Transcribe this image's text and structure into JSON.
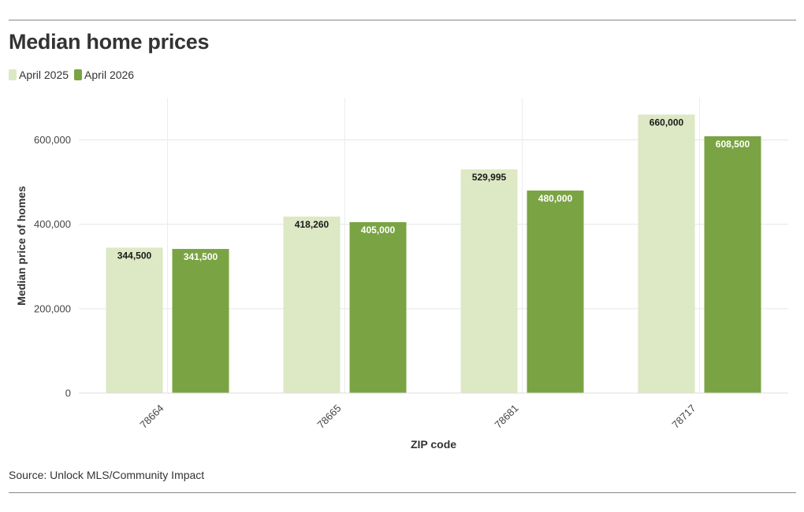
{
  "header": {
    "title": "Median home prices"
  },
  "legend": {
    "items": [
      {
        "label": "April 2025",
        "color": "#dde8c4"
      },
      {
        "label": "April 2026",
        "color": "#7aa343"
      }
    ]
  },
  "footer": {
    "source": "Source: Unlock MLS/Community Impact"
  },
  "chart_data": {
    "type": "bar",
    "title": "Median home prices",
    "xlabel": "ZIP code",
    "ylabel": "Median price of homes",
    "categories": [
      "78664",
      "78665",
      "78681",
      "78717"
    ],
    "series": [
      {
        "name": "April 2025",
        "color": "#dde8c4",
        "label_color": "#1a1a1a",
        "values": [
          344500,
          418260,
          529995,
          660000
        ],
        "labels": [
          "344,500",
          "418,260",
          "529,995",
          "660,000"
        ]
      },
      {
        "name": "April 2026",
        "color": "#7aa343",
        "label_color": "#ffffff",
        "values": [
          341500,
          405000,
          480000,
          608500
        ],
        "labels": [
          "341,500",
          "405,000",
          "480,000",
          "608,500"
        ]
      }
    ],
    "y_ticks": [
      {
        "value": 0,
        "label": "0"
      },
      {
        "value": 200000,
        "label": "200,000"
      },
      {
        "value": 400000,
        "label": "400,000"
      },
      {
        "value": 600000,
        "label": "600,000"
      }
    ],
    "ylim": [
      0,
      700000
    ],
    "grid": true,
    "legend_position": "top-left"
  }
}
